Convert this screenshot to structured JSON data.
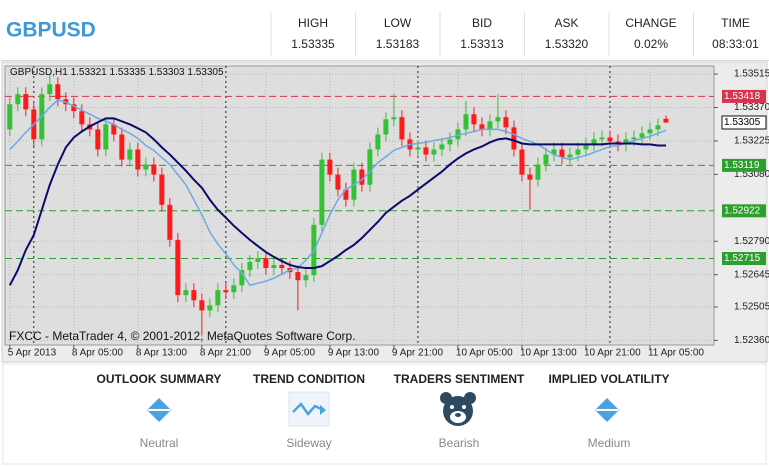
{
  "header": {
    "title": "GBPUSD",
    "stats": [
      {
        "label": "HIGH",
        "value": "1.53335"
      },
      {
        "label": "LOW",
        "value": "1.53183"
      },
      {
        "label": "BID",
        "value": "1.53313"
      },
      {
        "label": "ASK",
        "value": "1.53320"
      },
      {
        "label": "CHANGE",
        "value": "0.02%"
      },
      {
        "label": "TIME",
        "value": "08:33:01"
      }
    ]
  },
  "chart_data": {
    "type": "candlestick",
    "symbol": "GBPUSD,H1",
    "copyright": "FXCC - MetaTrader 4, © 2001-2012, MetaQuotes Software Corp.",
    "open": [
      1.53275,
      1.53384,
      1.53428,
      1.53362,
      1.53232,
      1.53428,
      1.53471,
      1.53406,
      1.53384,
      1.53354,
      1.53297,
      1.53275,
      1.53188,
      1.53297,
      1.53253,
      1.53144,
      1.53188,
      1.53101,
      1.53123,
      1.53079,
      1.52948,
      1.52796,
      1.52556,
      1.52578,
      1.52534,
      1.5249,
      1.52512,
      1.52578,
      1.52569,
      1.52599,
      1.52665,
      1.527,
      1.52717,
      1.52674,
      1.52687,
      1.52674,
      1.52656,
      1.52621,
      1.52643,
      1.52861,
      1.53144,
      1.53079,
      1.53014,
      1.5297,
      1.53101,
      1.53035,
      1.53188,
      1.53253,
      1.53319,
      1.53328,
      1.53232,
      1.53188,
      1.53197,
      1.53166,
      1.53188,
      1.5321,
      1.53232,
      1.53275,
      1.53341,
      1.53297,
      1.53275,
      1.5331,
      1.53328,
      1.53284,
      1.53188,
      1.53079,
      1.53057,
      1.53123,
      1.53166,
      1.53188,
      1.53153,
      1.53166,
      1.53188,
      1.5321,
      1.53232,
      1.5324,
      1.53223,
      1.5321,
      1.53232,
      1.5324,
      1.53258,
      1.53275,
      1.53321
    ],
    "high": [
      1.53414,
      1.53458,
      1.53458,
      1.53392,
      1.53458,
      1.53515,
      1.53501,
      1.53436,
      1.53414,
      1.53384,
      1.53327,
      1.53305,
      1.53327,
      1.53327,
      1.53283,
      1.53218,
      1.53218,
      1.53153,
      1.53153,
      1.53109,
      1.52978,
      1.52826,
      1.52608,
      1.52608,
      1.52564,
      1.52542,
      1.52608,
      1.52608,
      1.52629,
      1.52695,
      1.5273,
      1.52747,
      1.52747,
      1.52717,
      1.52717,
      1.52704,
      1.52686,
      1.52673,
      1.52891,
      1.53174,
      1.53174,
      1.53109,
      1.53044,
      1.53131,
      1.53131,
      1.53218,
      1.53283,
      1.53349,
      1.53428,
      1.53358,
      1.53262,
      1.53227,
      1.53227,
      1.53218,
      1.5324,
      1.53262,
      1.53305,
      1.53398,
      1.53371,
      1.53327,
      1.5334,
      1.53428,
      1.53358,
      1.53314,
      1.53218,
      1.53109,
      1.53153,
      1.53196,
      1.53218,
      1.53218,
      1.53196,
      1.53218,
      1.5324,
      1.53262,
      1.5327,
      1.5327,
      1.53253,
      1.53262,
      1.5327,
      1.53288,
      1.53305,
      1.53323,
      1.53335
    ],
    "low": [
      1.53245,
      1.53354,
      1.53332,
      1.53202,
      1.53202,
      1.53398,
      1.53376,
      1.53354,
      1.53324,
      1.53267,
      1.53245,
      1.53158,
      1.53158,
      1.53223,
      1.53114,
      1.53114,
      1.53071,
      1.53071,
      1.53049,
      1.52918,
      1.52766,
      1.52526,
      1.52526,
      1.52504,
      1.52381,
      1.5246,
      1.52482,
      1.52539,
      1.52539,
      1.52569,
      1.52635,
      1.5267,
      1.52644,
      1.52644,
      1.52644,
      1.52626,
      1.5249,
      1.52591,
      1.52613,
      1.52831,
      1.53049,
      1.52984,
      1.5294,
      1.5294,
      1.53005,
      1.53005,
      1.53158,
      1.53223,
      1.53289,
      1.53202,
      1.53158,
      1.53158,
      1.53136,
      1.53136,
      1.53158,
      1.5318,
      1.53202,
      1.53245,
      1.53267,
      1.53245,
      1.53245,
      1.5328,
      1.53254,
      1.53158,
      1.53049,
      1.52926,
      1.53027,
      1.53093,
      1.53136,
      1.53123,
      1.53123,
      1.53136,
      1.53158,
      1.5318,
      1.53202,
      1.53193,
      1.5318,
      1.5318,
      1.53202,
      1.5321,
      1.53228,
      1.53245,
      1.53303
    ],
    "close": [
      1.53384,
      1.53428,
      1.53362,
      1.53232,
      1.53428,
      1.53471,
      1.53406,
      1.53384,
      1.53354,
      1.53297,
      1.53275,
      1.53188,
      1.53297,
      1.53253,
      1.53144,
      1.53188,
      1.53101,
      1.53123,
      1.53079,
      1.52948,
      1.52796,
      1.52556,
      1.52578,
      1.52534,
      1.5249,
      1.52512,
      1.52578,
      1.52569,
      1.52599,
      1.52665,
      1.527,
      1.52717,
      1.52674,
      1.52687,
      1.52674,
      1.52656,
      1.52621,
      1.52643,
      1.52861,
      1.53144,
      1.53079,
      1.53014,
      1.5297,
      1.53101,
      1.53035,
      1.53188,
      1.53253,
      1.53319,
      1.53328,
      1.53232,
      1.53188,
      1.53197,
      1.53166,
      1.53188,
      1.5321,
      1.53232,
      1.53275,
      1.53341,
      1.53297,
      1.53275,
      1.5331,
      1.53328,
      1.53284,
      1.53188,
      1.53079,
      1.53057,
      1.53123,
      1.53166,
      1.53188,
      1.53153,
      1.53166,
      1.53188,
      1.5321,
      1.53232,
      1.5324,
      1.53223,
      1.5321,
      1.53232,
      1.5324,
      1.53258,
      1.53275,
      1.53293,
      1.53305
    ],
    "colors": {
      "up": "#33c233",
      "down": "#ff1a1a"
    },
    "series": [
      {
        "color": "#6fa8e6",
        "values": [
          1.53188,
          1.53223,
          1.53262,
          1.53297,
          1.53332,
          1.53371,
          1.53402,
          1.53393,
          1.53376,
          1.53358,
          1.53341,
          1.53323,
          1.5331,
          1.53297,
          1.53275,
          1.53258,
          1.53236,
          1.53205,
          1.53184,
          1.53153,
          1.53123,
          1.53079,
          1.53035,
          1.5297,
          1.52905,
          1.5283,
          1.52778,
          1.52735,
          1.52687,
          1.52652,
          1.52599,
          1.52608,
          1.52617,
          1.5263,
          1.52647,
          1.52665,
          1.52674,
          1.52708,
          1.52748,
          1.52826,
          1.52905,
          1.5297,
          1.53014,
          1.53035,
          1.53057,
          1.53092,
          1.53131,
          1.53157,
          1.53184,
          1.53197,
          1.5321,
          1.53214,
          1.53219,
          1.53227,
          1.53232,
          1.5324,
          1.53249,
          1.53258,
          1.53266,
          1.53275,
          1.53275,
          1.53275,
          1.53266,
          1.53253,
          1.53236,
          1.53223,
          1.5321,
          1.53188,
          1.53166,
          1.53153,
          1.53144,
          1.53153,
          1.53162,
          1.53175,
          1.53188,
          1.53201,
          1.53205,
          1.53214,
          1.53227,
          1.53236,
          1.53245,
          1.53258,
          1.53271
        ]
      },
      {
        "color": "#0b0b6b",
        "values": [
          1.52599,
          1.52665,
          1.52752,
          1.52817,
          1.52926,
          1.53035,
          1.53123,
          1.53197,
          1.5324,
          1.53266,
          1.53288,
          1.53306,
          1.53323,
          1.53323,
          1.5331,
          1.53297,
          1.5328,
          1.53262,
          1.53232,
          1.53197,
          1.53166,
          1.53131,
          1.53096,
          1.53057,
          1.53022,
          1.5297,
          1.52926,
          1.52892,
          1.52857,
          1.52826,
          1.52796,
          1.52769,
          1.52743,
          1.52722,
          1.52704,
          1.52687,
          1.52678,
          1.52674,
          1.52674,
          1.52682,
          1.52704,
          1.52726,
          1.52752,
          1.52774,
          1.52804,
          1.52839,
          1.52874,
          1.52913,
          1.5294,
          1.52966,
          1.52987,
          1.53014,
          1.5304,
          1.53066,
          1.53092,
          1.53123,
          1.53149,
          1.53171,
          1.53188,
          1.53201,
          1.53219,
          1.53232,
          1.53236,
          1.53227,
          1.53214,
          1.5321,
          1.5321,
          1.5321,
          1.5321,
          1.5321,
          1.5321,
          1.5321,
          1.5321,
          1.5321,
          1.5321,
          1.53214,
          1.53214,
          1.53214,
          1.53214,
          1.5321,
          1.5321,
          1.53205,
          1.53205
        ]
      }
    ],
    "levels": [
      {
        "value": 1.53418,
        "color": "#d6334d"
      },
      {
        "value": 1.53119,
        "color": "#2e9e2e"
      },
      {
        "value": 1.52922,
        "color": "#2e9e2e"
      },
      {
        "value": 1.52715,
        "color": "#2e9e2e"
      }
    ],
    "separators": [
      3,
      27,
      51,
      75
    ],
    "xlim": [
      -0.6,
      88
    ],
    "ylim": [
      1.5234,
      1.5355
    ],
    "xticks": [
      {
        "value": 0,
        "label": "5 Apr 2013"
      },
      {
        "value": 8,
        "label": "8 Apr 05:00"
      },
      {
        "value": 16,
        "label": "8 Apr 13:00"
      },
      {
        "value": 24,
        "label": "8 Apr 21:00"
      },
      {
        "value": 32,
        "label": "9 Apr 05:00"
      },
      {
        "value": 40,
        "label": "9 Apr 13:00"
      },
      {
        "value": 48,
        "label": "9 Apr 21:00"
      },
      {
        "value": 56,
        "label": "10 Apr 05:00"
      },
      {
        "value": 64,
        "label": "10 Apr 13:00"
      },
      {
        "value": 72,
        "label": "10 Apr 21:00"
      },
      {
        "value": 80,
        "label": "11 Apr 05:00"
      }
    ],
    "yticks": [
      1.53515,
      {
        "value": 1.5337,
        "label": "1.53370"
      },
      1.53225,
      {
        "value": 1.5308,
        "label": "1.53080"
      },
      {
        "value": 1.5279,
        "label": "1.52790"
      },
      1.52645,
      1.52505,
      {
        "value": 1.5236,
        "label": "1.52360"
      }
    ],
    "grid": true
  },
  "summary": [
    {
      "title": "OUTLOOK SUMMARY",
      "status": "Neutral"
    },
    {
      "title": "TREND CONDITION",
      "status": "Sideway"
    },
    {
      "title": "TRADERS SENTIMENT",
      "status": "Bearish"
    },
    {
      "title": "IMPLIED VOLATILITY",
      "status": "Medium"
    }
  ]
}
